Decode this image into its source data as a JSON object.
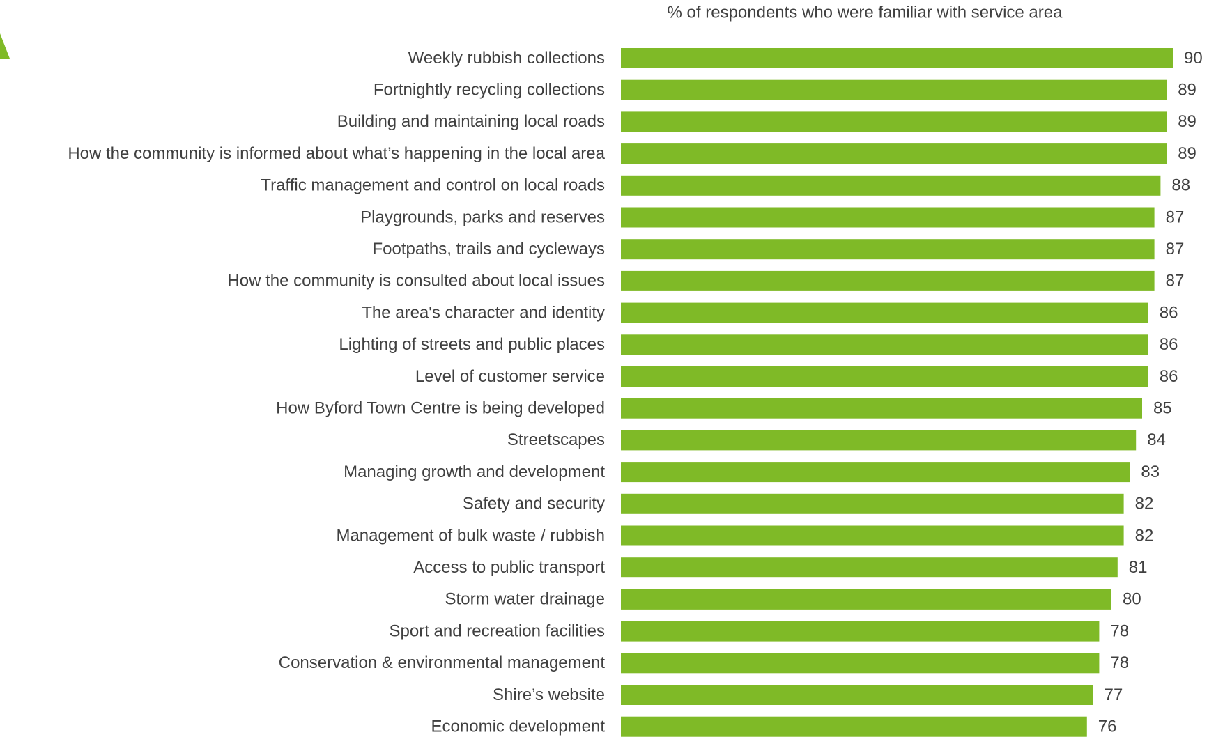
{
  "chart_data": {
    "type": "bar",
    "orientation": "horizontal",
    "title": "% of respondents who were familiar with service area",
    "color": "#7fba27",
    "categories": [
      "Weekly rubbish collections",
      "Fortnightly recycling collections",
      "Building and maintaining local roads",
      "How the community is informed about what’s happening in the local area",
      "Traffic management and control on local roads",
      "Playgrounds, parks and reserves",
      "Footpaths, trails and cycleways",
      "How the community is consulted about local issues",
      "The area's character and identity",
      "Lighting of streets and public places",
      "Level of customer service",
      "How Byford Town Centre is being developed",
      "Streetscapes",
      "Managing growth and development",
      "Safety and security",
      "Management of bulk waste / rubbish",
      "Access to public transport",
      "Storm water drainage",
      "Sport and recreation facilities",
      "Conservation & environmental management",
      "Shire’s website",
      "Economic development"
    ],
    "values": [
      90,
      89,
      89,
      89,
      88,
      87,
      87,
      87,
      86,
      86,
      86,
      85,
      84,
      83,
      82,
      82,
      81,
      80,
      78,
      78,
      77,
      76
    ]
  }
}
